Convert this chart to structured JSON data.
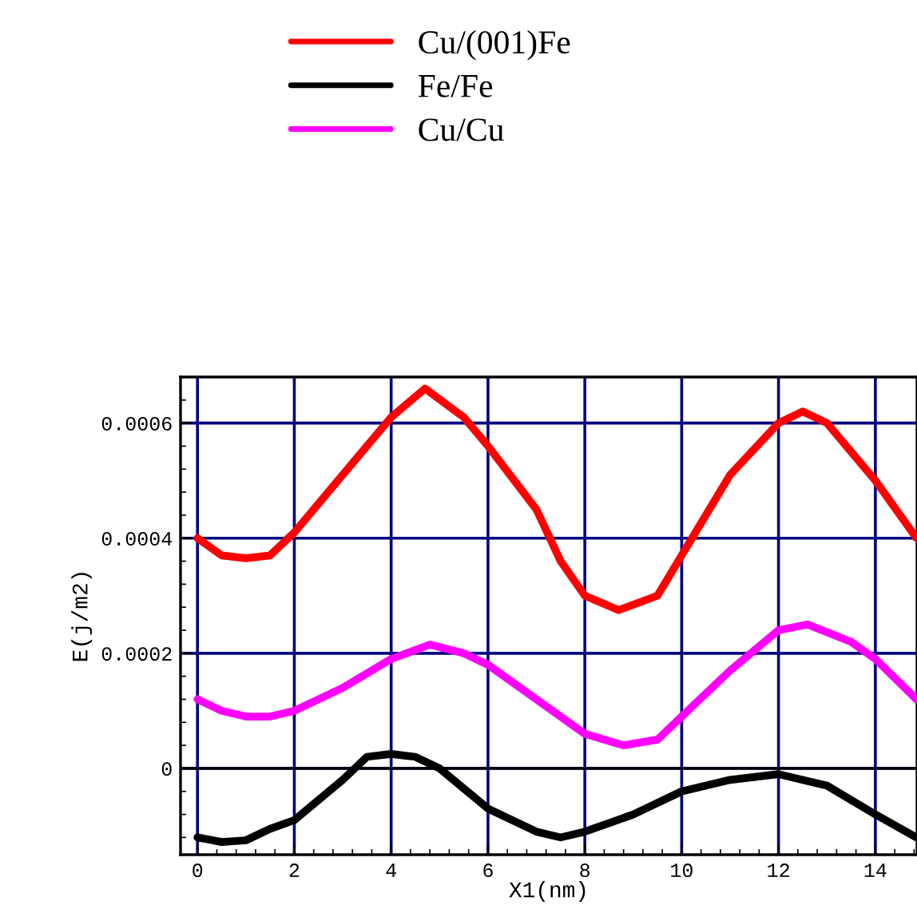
{
  "chart_data": {
    "type": "line",
    "xlabel": "X1(nm)",
    "ylabel": "E(j/m2)",
    "xlim": [
      -0.35,
      14.86
    ],
    "ylim": [
      -0.00015,
      0.00068
    ],
    "xticks": [
      0,
      2,
      4,
      6,
      8,
      10,
      12,
      14
    ],
    "yticks": [
      0,
      0.0002,
      0.0004,
      0.0006
    ],
    "grid": true,
    "legend": "top",
    "line_style": "solid",
    "marker": "none",
    "ref_lines": [
      {
        "axis": "y",
        "value": 0,
        "color": "#000000"
      }
    ],
    "series": [
      {
        "name": "Cu/(001)Fe",
        "color": "#ff0000",
        "x": [
          0,
          0.5,
          1,
          1.5,
          2,
          3,
          4,
          4.7,
          5.5,
          6,
          7,
          7.5,
          8,
          8.7,
          9.5,
          10,
          11,
          12,
          12.5,
          13,
          14,
          14.85
        ],
        "values": [
          0.0004,
          0.00037,
          0.000365,
          0.00037,
          0.00041,
          0.00051,
          0.00061,
          0.00066,
          0.00061,
          0.00056,
          0.00045,
          0.00036,
          0.0003,
          0.000275,
          0.0003,
          0.00037,
          0.00051,
          0.0006,
          0.00062,
          0.0006,
          0.0005,
          0.0004
        ]
      },
      {
        "name": "Fe/Fe",
        "color": "#000000",
        "x": [
          0,
          0.5,
          1,
          1.5,
          2,
          3,
          3.5,
          4,
          4.5,
          5,
          6,
          7,
          7.5,
          8,
          9,
          10,
          11,
          12,
          13,
          14,
          14.85
        ],
        "values": [
          -0.00012,
          -0.000128,
          -0.000125,
          -0.000105,
          -9e-05,
          -2e-05,
          2e-05,
          2.5e-05,
          2e-05,
          0,
          -7e-05,
          -0.00011,
          -0.00012,
          -0.00011,
          -8e-05,
          -4e-05,
          -2e-05,
          -1e-05,
          -3e-05,
          -8e-05,
          -0.00012
        ]
      },
      {
        "name": "Cu/Cu",
        "color": "#ff00ff",
        "x": [
          0,
          0.5,
          1,
          1.5,
          2,
          3,
          4,
          4.8,
          5.5,
          6,
          7,
          8,
          8.8,
          9.5,
          10,
          11,
          12,
          12.6,
          13.5,
          14,
          14.85
        ],
        "values": [
          0.00012,
          0.0001,
          9e-05,
          9e-05,
          0.0001,
          0.00014,
          0.00019,
          0.000215,
          0.0002,
          0.00018,
          0.00012,
          6e-05,
          4e-05,
          5e-05,
          9e-05,
          0.00017,
          0.00024,
          0.00025,
          0.00022,
          0.00019,
          0.00012
        ]
      }
    ]
  }
}
